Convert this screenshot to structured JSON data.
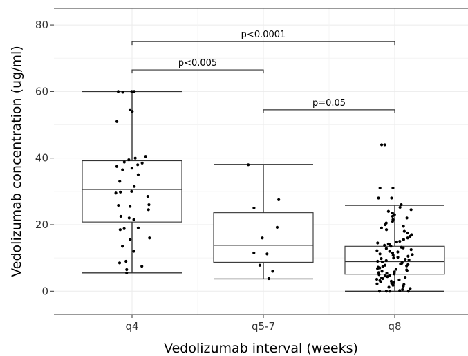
{
  "chart_data": {
    "type": "box",
    "xlabel": "Vedolizumab interval (weeks)",
    "ylabel": "Vedolizumab concentration (ug/ml)",
    "ylim": [
      -7,
      85
    ],
    "yticks": [
      0,
      20,
      40,
      60,
      80
    ],
    "grid": true,
    "categories": [
      "q4",
      "q5-7",
      "q8"
    ],
    "boxes": [
      {
        "category": "q4",
        "min": 5.5,
        "q1": 20.8,
        "median": 30.6,
        "q3": 39.2,
        "max": 60
      },
      {
        "category": "q5-7",
        "min": 3.7,
        "q1": 8.7,
        "median": 13.8,
        "q3": 23.6,
        "max": 38.1
      },
      {
        "category": "q8",
        "min": 0,
        "q1": 5.1,
        "median": 8.9,
        "q3": 13.5,
        "max": 25.8
      }
    ],
    "points": [
      {
        "category": "q4",
        "values": [
          60,
          60,
          60,
          59.8,
          54.5,
          54,
          51,
          40.5,
          40,
          39.5,
          38.8,
          38.5,
          38,
          37.5,
          37,
          36.5,
          35,
          33,
          31.5,
          30,
          29.8,
          29.5,
          28.5,
          26,
          25.8,
          25.5,
          24.5,
          22.5,
          22,
          21.5,
          19,
          18.8,
          18.5,
          16,
          15.5,
          13.5,
          12,
          9,
          8.5,
          7.5,
          6.5,
          5.5
        ]
      },
      {
        "category": "q5-7",
        "values": [
          38,
          27.5,
          25,
          19.2,
          16,
          11.5,
          11.2,
          7.8,
          6,
          3.8
        ]
      },
      {
        "category": "q8",
        "values": [
          44,
          44,
          31,
          31,
          28,
          28,
          26,
          25.2,
          24.5,
          24,
          23.5,
          23,
          22.5,
          22,
          21.5,
          21,
          20.5,
          20,
          19.5,
          19,
          18.5,
          18,
          17.5,
          17,
          16.5,
          16,
          15.5,
          15,
          14.8,
          14.5,
          14.2,
          14,
          13.8,
          13.5,
          13.2,
          13,
          12.8,
          12.5,
          12.2,
          12,
          11.8,
          11.5,
          11.2,
          11,
          10.8,
          10.5,
          10.2,
          10,
          9.8,
          9.6,
          9.4,
          9.2,
          9,
          8.8,
          8.6,
          8.4,
          8.2,
          8,
          7.8,
          7.6,
          7.4,
          7.2,
          7,
          6.8,
          6.6,
          6.4,
          6.2,
          6,
          5.8,
          5.6,
          5.4,
          5.2,
          5,
          4.8,
          4.6,
          4.4,
          4.2,
          4,
          3.8,
          3.6,
          3.4,
          3.2,
          3,
          2.8,
          2.6,
          2.4,
          2.2,
          2,
          1.8,
          1.5,
          1.2,
          0.8,
          0.5,
          0.2,
          0,
          0,
          0,
          0
        ]
      }
    ],
    "annotations": [
      {
        "from": "q4",
        "to": "q8",
        "y": 75,
        "label": "p<0.0001"
      },
      {
        "from": "q4",
        "to": "q5-7",
        "y": 66.5,
        "label": "p<0.005"
      },
      {
        "from": "q5-7",
        "to": "q8",
        "y": 54.5,
        "label": "p=0.05"
      }
    ]
  }
}
